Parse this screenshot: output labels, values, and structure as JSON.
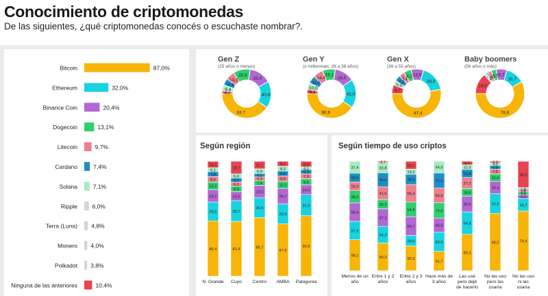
{
  "header": {
    "title": "Conocimiento de criptomonedas",
    "subtitle": "De las siguientes, ¿qué criptomonedas conocés o escuchaste nombrar?."
  },
  "colors": {
    "Bitcoin": "#f8b508",
    "Ethereum": "#18d3df",
    "Binance Coin": "#b367d2",
    "Dogecoin": "#2fcf6e",
    "Litecoin": "#ee7f8d",
    "Cardano": "#1f8ec7",
    "Solana": "#a6ecc0",
    "Ripple": "#d4d4d4",
    "Terra (Luna)": "#d4d4d4",
    "Monero": "#d4d4d4",
    "Polkadot": "#d4d4d4",
    "Ninguna de las anteriores": "#e94352"
  },
  "chart_data": [
    {
      "type": "bar",
      "orientation": "horizontal",
      "categories": [
        "Bitcoin",
        "Ethereum",
        "Binance Coin",
        "Dogecoin",
        "Litecoin",
        "Cardano",
        "Solana",
        "Ripple",
        "Terra (Luna)",
        "Monero",
        "Polkadot",
        "Ninguna de las anteriores"
      ],
      "values": [
        87.0,
        32.0,
        20.4,
        13.1,
        9.7,
        7.4,
        7.1,
        6.0,
        4.8,
        4.0,
        3.8,
        10.4
      ],
      "labels": [
        "87,0%",
        "32,0%",
        "20,4%",
        "13,1%",
        "9,7%",
        "7,4%",
        "7,1%",
        "6,0%",
        "4,8%",
        "4,0%",
        "3,8%",
        "10,4%"
      ],
      "xlim": [
        0,
        100
      ]
    },
    {
      "type": "pie",
      "variant": "donut",
      "segment_order": [
        "Bitcoin",
        "Ethereum",
        "Binance Coin",
        "Dogecoin",
        "Litecoin",
        "Cardano",
        "Solana",
        "Ripple",
        "Terra (Luna)",
        "Monero",
        "Polkadot",
        "Ninguna de las anteriores"
      ],
      "charts": [
        {
          "name": "Gen Z",
          "subtitle": "(25 años o menos)",
          "values": [
            93.7,
            40.8,
            33.6,
            25.9,
            13.3,
            10.4,
            9.4,
            0,
            0,
            0,
            0,
            4.2
          ],
          "labels": [
            "93,7",
            "40,8",
            "33,6",
            "25,9",
            "13,3",
            "10,4",
            "9,4",
            "",
            "",
            "",
            "",
            "4,2"
          ]
        },
        {
          "name": "Gen Y",
          "subtitle": "(o millennials: 26 a 38 años)",
          "values": [
            90.6,
            42.0,
            29.0,
            19.1,
            14.4,
            11.6,
            10.0,
            0,
            0,
            0,
            0,
            6.2
          ],
          "labels": [
            "90,6",
            "42,0",
            "29,0",
            "19,1",
            "14,4",
            "11,6",
            "10,0",
            "",
            "",
            "",
            "",
            "6,2"
          ]
        },
        {
          "name": "Gen X",
          "subtitle": "(39 a 55 años)",
          "values": [
            87.4,
            29.0,
            13.6,
            8.2,
            6.1,
            6.5,
            5.0,
            0,
            0,
            0,
            0,
            9.7
          ],
          "labels": [
            "87,4",
            "29,0",
            "13,6",
            "8,2",
            "6,1",
            "6,5",
            "5,0",
            "",
            "",
            "",
            "",
            "9,7"
          ]
        },
        {
          "name": "Baby boomers",
          "subtitle": "(56 años o más)",
          "values": [
            78.6,
            16.7,
            9.7,
            4.5,
            3.3,
            1.5,
            2.1,
            0,
            0,
            0,
            0,
            19.0
          ],
          "labels": [
            "78,6",
            "16,7",
            "9,7",
            "4,5",
            "3,3",
            "1,5",
            "2,1",
            "",
            "",
            "",
            "",
            "19,0"
          ]
        }
      ]
    },
    {
      "type": "bar",
      "variant": "stacked",
      "title": "Según región",
      "categories": [
        "N. Grande",
        "Cuyo",
        "Centro",
        "AMBA",
        "Patagonia"
      ],
      "stack_order": [
        "Bitcoin",
        "Ethereum",
        "Binance Coin",
        "Dogecoin",
        "Litecoin",
        "Cardano",
        "Solana",
        "Ninguna de las anteriores"
      ],
      "series": [
        {
          "name": "Bitcoin",
          "values": [
            86.4,
            81.4,
            86.7,
            87.9,
            90.5
          ],
          "labels": [
            "86,4",
            "81,4",
            "86,7",
            "87,9",
            "90,5"
          ]
        },
        {
          "name": "Ethereum",
          "values": [
            29.5,
            30.7,
            29.5,
            33.9,
            31.5
          ],
          "labels": [
            "29,5",
            "30,7",
            "29,5",
            "33,9",
            "31,5"
          ]
        },
        {
          "name": "Binance Coin",
          "values": [
            19.1,
            13.5,
            18.0,
            25.7,
            14.3
          ],
          "labels": [
            "19,1",
            "13,5",
            "18,0",
            "25,7",
            "14,3"
          ]
        },
        {
          "name": "Dogecoin",
          "values": [
            12.2,
            8.3,
            7.4,
            12.2,
            9.5
          ],
          "labels": [
            "12,2",
            "8,3",
            "7,4",
            "12,2",
            "9,5"
          ]
        },
        {
          "name": "Litecoin",
          "values": [
            8.4,
            6.1,
            5.3,
            8.6,
            7.3
          ],
          "labels": [
            "8,4",
            "6,1",
            "5,3",
            "8,6",
            "7,3"
          ]
        },
        {
          "name": "Cardano",
          "values": [
            7.8,
            6.1,
            5.1,
            8.6,
            6.3
          ],
          "labels": [
            "7,8",
            "6,1",
            "5,1",
            "8,6",
            "6,3"
          ]
        },
        {
          "name": "Solana",
          "values": [
            6.1,
            6.0,
            6.9,
            8.2,
            4.1
          ],
          "labels": [
            "6,1",
            "6,0",
            "6,9",
            "8,2",
            "4,1"
          ]
        },
        {
          "name": "Ninguna de las anteriores",
          "values": [
            10.1,
            18.7,
            11.1,
            8.1,
            8.3
          ],
          "labels": [
            "10,1",
            "18,7",
            "11,1",
            "8,1",
            "8,3"
          ]
        }
      ]
    },
    {
      "type": "bar",
      "variant": "stacked",
      "title": "Según tiempo de uso criptos",
      "categories": [
        "Menos de un año",
        "Entre 1 y 2 años",
        "Entre 2 y 3 años",
        "Hace más de 3 años",
        "Las usé pero dejé de hacerlo",
        "No las uso pero las usaría",
        "No las uso ni las usaría"
      ],
      "stack_order": [
        "Bitcoin",
        "Ethereum",
        "Binance Coin",
        "Dogecoin",
        "Litecoin",
        "Cardano",
        "Solana",
        "Ninguna de las anteriores"
      ],
      "series": [
        {
          "name": "Bitcoin",
          "values": [
            98.1,
            90.2,
            92.3,
            91.7,
            89.3,
            90.2,
            79.4
          ],
          "labels": [
            "98,1",
            "90,2",
            "92,3",
            "91,7",
            "89,3",
            "90,2",
            "79,4"
          ]
        },
        {
          "name": "Ethereum",
          "values": [
            57.9,
            54.3,
            39.6,
            89.9,
            54.8,
            31.2,
            16.7
          ],
          "labels": [
            "57,9",
            "54,3",
            "39,6",
            "89,9",
            "54,8",
            "31,2",
            "16,7"
          ]
        },
        {
          "name": "Binance Coin",
          "values": [
            58.4,
            57.2,
            69.7,
            66.6,
            38.6,
            19.4,
            5.0
          ],
          "labels": [
            "58,4",
            "57,2",
            "69,7",
            "66,6",
            "38,6",
            "19,4",
            "5,0"
          ]
        },
        {
          "name": "Dogecoin",
          "values": [
            39.2,
            30.2,
            54.8,
            72.6,
            18.6,
            11.4,
            3.8
          ],
          "labels": [
            "39,2",
            "30,2",
            "54,8",
            "72,6",
            "18,6",
            "11,4",
            "3,8"
          ]
        },
        {
          "name": "Litecoin",
          "values": [
            26.9,
            41.6,
            65.4,
            69.8,
            27.2,
            7.8,
            2.6
          ],
          "labels": [
            "26,9",
            "41,6",
            "65,4",
            "69,8",
            "27,2",
            "7,8",
            "2,6"
          ]
        },
        {
          "name": "Cardano",
          "values": [
            28.0,
            45.5,
            38.5,
            71.1,
            19.8,
            5.8,
            1.4
          ],
          "labels": [
            "28,0",
            "45,5",
            "38,5",
            "71,1",
            "19,8",
            "5,8",
            "1,4"
          ]
        },
        {
          "name": "Solana",
          "values": [
            37.4,
            33.8,
            19.2,
            54.8,
            11.3,
            4.3,
            1.8
          ],
          "labels": [
            "37,4",
            "33,8",
            "19,2",
            "54,8",
            "11,3",
            "4,3",
            "1,8"
          ]
        },
        {
          "name": "Ninguna de las anteriores",
          "values": [
            0,
            3.7,
            29.1,
            0,
            8.5,
            2.2,
            35.0
          ],
          "labels": [
            "",
            "3,7",
            "29,1",
            "",
            "8,5",
            "2,2",
            "35,0"
          ]
        }
      ]
    }
  ]
}
